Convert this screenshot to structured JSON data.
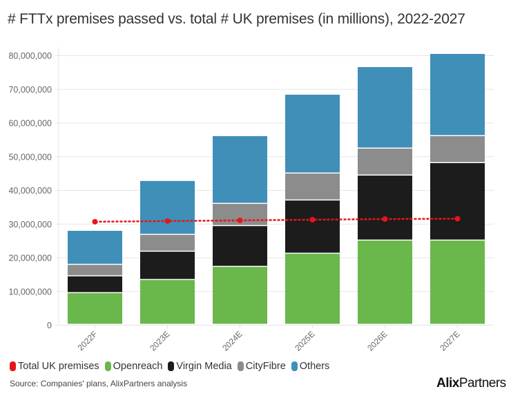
{
  "chart_data": {
    "type": "bar",
    "stacked": true,
    "title": "# FTTx premises passed vs. total # UK premises (in millions), 2022-2027",
    "xlabel": "",
    "ylabel": "",
    "categories": [
      "2022F",
      "2023E",
      "2024E",
      "2025E",
      "2026E",
      "2027E"
    ],
    "ylim": [
      0,
      80000000
    ],
    "yticks": [
      0,
      10000000,
      20000000,
      30000000,
      40000000,
      50000000,
      60000000,
      70000000,
      80000000
    ],
    "ytick_labels": [
      "0",
      "10,000,000",
      "20,000,000",
      "30,000,000",
      "40,000,000",
      "50,000,000",
      "60,000,000",
      "70,000,000",
      "80,000,000"
    ],
    "grid": true,
    "series": [
      {
        "name": "Openreach",
        "type": "bar",
        "color": "#6ab74b",
        "values": [
          9400000,
          13300000,
          17200000,
          21100000,
          25000000,
          25000000
        ]
      },
      {
        "name": "Virgin Media",
        "type": "bar",
        "color": "#1c1c1c",
        "values": [
          5000000,
          8400000,
          12100000,
          15800000,
          19300000,
          23000000
        ]
      },
      {
        "name": "CityFibre",
        "type": "bar",
        "color": "#8c8c8c",
        "values": [
          3400000,
          5000000,
          6600000,
          8000000,
          8000000,
          8000000
        ]
      },
      {
        "name": "Others",
        "type": "bar",
        "color": "#3f8fb8",
        "values": [
          10100000,
          16000000,
          20100000,
          23400000,
          24200000,
          24400000
        ]
      },
      {
        "name": "Total UK premises",
        "type": "line",
        "style": "dotted",
        "color": "#e8141a",
        "values": [
          30600000,
          30800000,
          31000000,
          31200000,
          31400000,
          31500000
        ]
      }
    ],
    "legend": {
      "position": "bottom-left",
      "entries": [
        {
          "label": "Total UK premises",
          "color": "#e8141a"
        },
        {
          "label": "Openreach",
          "color": "#6ab74b"
        },
        {
          "label": "Virgin Media",
          "color": "#1c1c1c"
        },
        {
          "label": "CityFibre",
          "color": "#8c8c8c"
        },
        {
          "label": "Others",
          "color": "#3f8fb8"
        }
      ]
    }
  },
  "source": "Source: Companies' plans, AlixPartners analysis",
  "logo": {
    "bold": "Alix",
    "regular": "Partners"
  }
}
